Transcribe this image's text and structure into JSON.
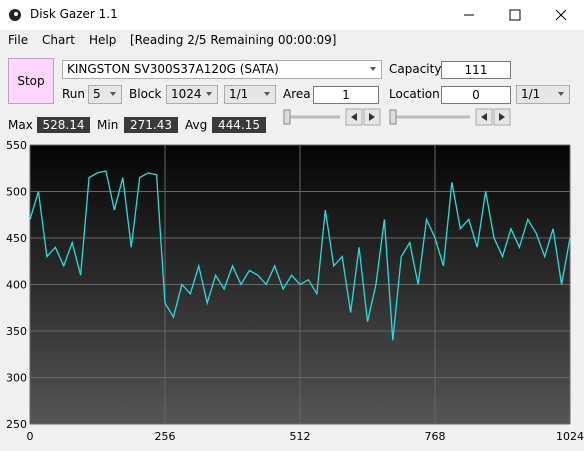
{
  "title_bar": {
    "title": "Disk Gazer 1.1"
  },
  "menu": {
    "items": [
      "File",
      "Chart",
      "Help"
    ],
    "status": "[Reading 2/5 Remaining 00:00:09]"
  },
  "controls": {
    "stop": "Stop",
    "drive": "KINGSTON SV300S37A120G (SATA)",
    "capacity_label": "Capacity",
    "capacity_value": "111",
    "run_label": "Run",
    "run_value": "5",
    "block_label": "Block",
    "block_value": "1024",
    "block_fraction": "1/1",
    "area_label": "Area",
    "area_value": "1",
    "location_label": "Location",
    "location_value": "0",
    "location_fraction": "1/1"
  },
  "stats": {
    "max_label": "Max",
    "max_value": "528.14",
    "min_label": "Min",
    "min_value": "271.43",
    "avg_label": "Avg",
    "avg_value": "444.15"
  },
  "chart_data": {
    "type": "line",
    "color": "#1fe0e0",
    "grid": true,
    "x": [
      0,
      16,
      32,
      48,
      64,
      80,
      96,
      112,
      128,
      144,
      160,
      176,
      192,
      208,
      224,
      240,
      256,
      272,
      288,
      304,
      320,
      336,
      352,
      368,
      384,
      400,
      416,
      432,
      448,
      464,
      480,
      496,
      512,
      528,
      544,
      560,
      576,
      592,
      608,
      624,
      640,
      656,
      672,
      688,
      704,
      720,
      736,
      752,
      768,
      784,
      800,
      816,
      832,
      848,
      864,
      880,
      896,
      912,
      928,
      944,
      960,
      976,
      992,
      1008,
      1024
    ],
    "values": [
      470,
      500,
      430,
      440,
      420,
      445,
      410,
      515,
      520,
      522,
      480,
      515,
      440,
      515,
      520,
      518,
      380,
      365,
      400,
      390,
      420,
      380,
      410,
      395,
      420,
      400,
      415,
      410,
      400,
      420,
      395,
      410,
      400,
      405,
      390,
      480,
      420,
      430,
      370,
      440,
      360,
      400,
      470,
      340,
      430,
      445,
      400,
      470,
      450,
      420,
      510,
      460,
      470,
      440,
      500,
      450,
      430,
      460,
      440,
      470,
      455,
      430,
      460,
      400,
      450
    ],
    "xlim": [
      0,
      1024
    ],
    "xticks": [
      0,
      256,
      512,
      768,
      1024
    ],
    "ylim": [
      250,
      550
    ],
    "yticks": [
      250,
      300,
      350,
      400,
      450,
      500,
      550
    ]
  }
}
